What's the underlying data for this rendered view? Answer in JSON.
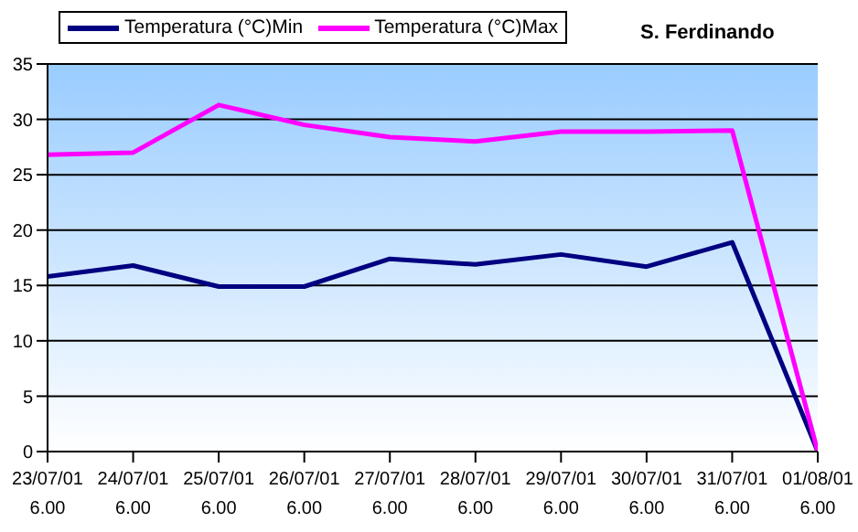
{
  "chart_data": {
    "type": "line",
    "title": "S. Ferdinando",
    "categories": [
      "23/07/01\n6.00",
      "24/07/01\n6.00",
      "25/07/01\n6.00",
      "26/07/01\n6.00",
      "27/07/01\n6.00",
      "28/07/01\n6.00",
      "29/07/01\n6.00",
      "30/07/01\n6.00",
      "31/07/01\n6.00",
      "01/08/01\n6.00"
    ],
    "series": [
      {
        "name": "Temperatura (°C)Min",
        "color": "#000080",
        "values": [
          15.8,
          16.8,
          14.9,
          14.9,
          17.4,
          16.9,
          17.8,
          16.7,
          18.9,
          0
        ]
      },
      {
        "name": "Temperatura (°C)Max",
        "color": "#ff00ff",
        "values": [
          26.8,
          27,
          31.3,
          29.5,
          28.4,
          28,
          28.9,
          28.9,
          29,
          0
        ]
      }
    ],
    "ylim": [
      0,
      35
    ],
    "yticks": [
      0,
      5,
      10,
      15,
      20,
      25,
      30,
      35
    ],
    "grid": "y",
    "legend": "top",
    "marker": "none",
    "line_style": "solid"
  }
}
